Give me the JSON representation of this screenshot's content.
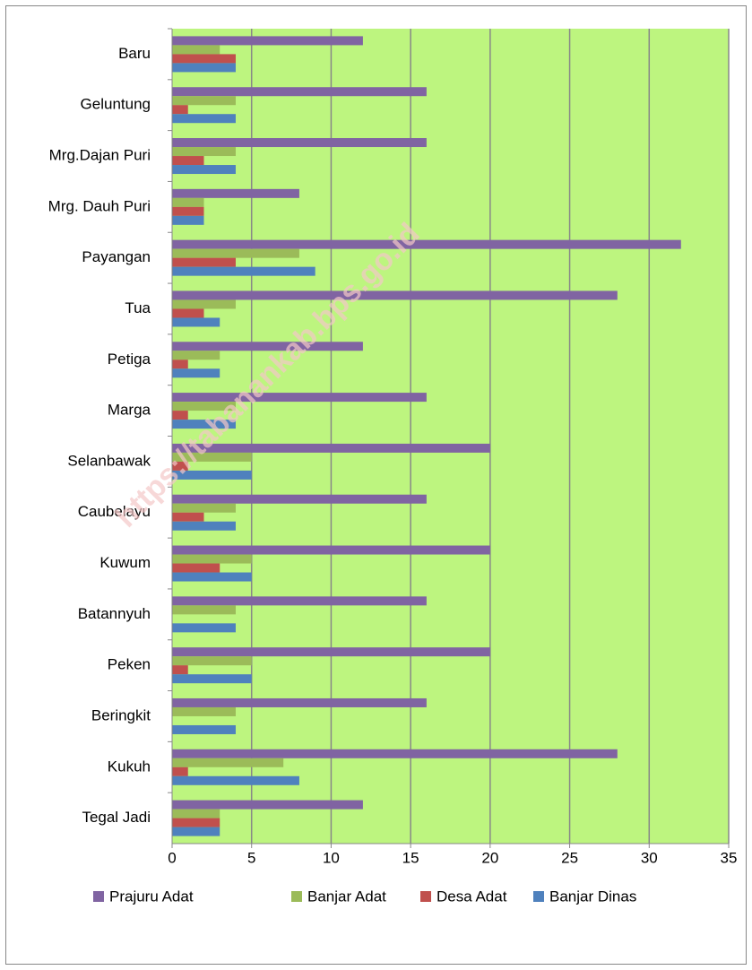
{
  "chart_data": {
    "type": "hbar",
    "categories": [
      "Baru",
      "Geluntung",
      "Mrg.Dajan Puri",
      "Mrg. Dauh Puri",
      "Payangan",
      "Tua",
      "Petiga",
      "Marga",
      "Selanbawak",
      "Caubelayu",
      "Kuwum",
      "Batannyuh",
      "Peken",
      "Beringkit",
      "Kukuh",
      "Tegal Jadi"
    ],
    "series": [
      {
        "name": "Prajuru Adat",
        "color": "#8064a2",
        "values": [
          12,
          16,
          16,
          8,
          32,
          28,
          12,
          16,
          20,
          16,
          20,
          16,
          20,
          16,
          28,
          12
        ]
      },
      {
        "name": "Banjar Adat",
        "color": "#9bbb59",
        "values": [
          3,
          4,
          4,
          2,
          8,
          4,
          3,
          4,
          5,
          4,
          5,
          4,
          5,
          4,
          7,
          3
        ]
      },
      {
        "name": "Desa Adat",
        "color": "#c0504d",
        "values": [
          4,
          1,
          2,
          2,
          4,
          2,
          1,
          1,
          1,
          2,
          3,
          0,
          1,
          0,
          1,
          3
        ]
      },
      {
        "name": "Banjar Dinas",
        "color": "#4f81bd",
        "values": [
          4,
          4,
          4,
          2,
          9,
          3,
          3,
          4,
          5,
          4,
          5,
          4,
          5,
          4,
          8,
          3
        ]
      }
    ],
    "xlim": [
      0,
      35
    ],
    "xticks": [
      0,
      5,
      10,
      15,
      20,
      25,
      30,
      35
    ],
    "grid": true,
    "plot_background": "#bdf57f",
    "legend": "bottom",
    "watermark": "https://tabanankab.bps.go.id"
  }
}
